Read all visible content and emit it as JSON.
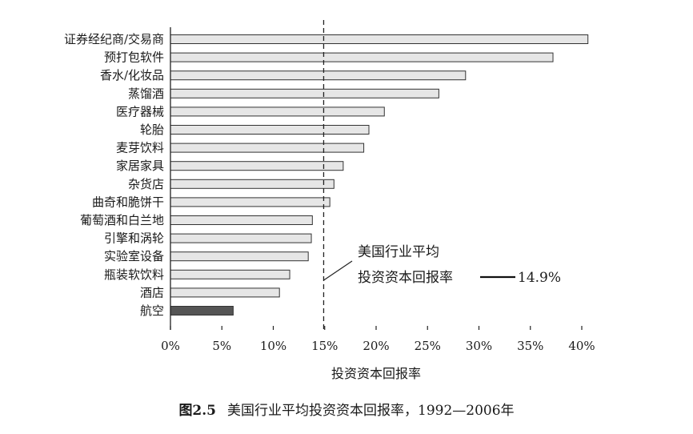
{
  "caption": {
    "number": "图2.5",
    "text": "美国行业平均投资资本回报率，1992—2006年"
  },
  "chart_data": {
    "type": "bar",
    "orientation": "horizontal",
    "categories": [
      "证券经纪商/交易商",
      "预打包软件",
      "香水/化妆品",
      "蒸馏酒",
      "医疗器械",
      "轮胎",
      "麦芽饮料",
      "家居家具",
      "杂货店",
      "曲奇和脆饼干",
      "葡萄酒和白兰地",
      "引擎和涡轮",
      "实验室设备",
      "瓶装软饮料",
      "酒店",
      "航空"
    ],
    "values": [
      40.6,
      37.2,
      28.7,
      26.1,
      20.8,
      19.3,
      18.8,
      16.8,
      15.9,
      15.5,
      13.8,
      13.7,
      13.4,
      11.6,
      10.6,
      6.1
    ],
    "highlight_index": 15,
    "xlabel": "投资资本回报率",
    "ylabel": "",
    "xlim": [
      0,
      40
    ],
    "xticks": [
      0,
      5,
      10,
      15,
      20,
      25,
      30,
      35,
      40
    ],
    "xtick_labels": [
      "0%",
      "5%",
      "10%",
      "15%",
      "20%",
      "25%",
      "30%",
      "35%",
      "40%"
    ],
    "reference_line": {
      "value": 14.9,
      "label_line1": "美国行业平均",
      "label_line2": "投资资本回报率",
      "value_label": "14.9%"
    },
    "colors": {
      "bar": "#e6e6e6",
      "highlight": "#555555",
      "outline": "#333333"
    }
  }
}
